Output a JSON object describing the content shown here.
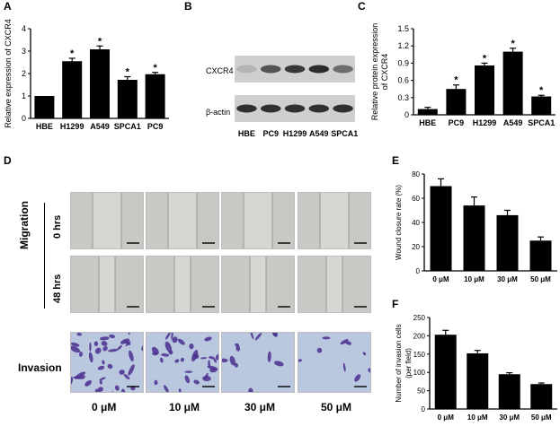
{
  "panels": {
    "A": {
      "letter": "A"
    },
    "B": {
      "letter": "B"
    },
    "C": {
      "letter": "C"
    },
    "D": {
      "letter": "D"
    },
    "E": {
      "letter": "E"
    },
    "F": {
      "letter": "F"
    }
  },
  "colors": {
    "bar": "#000000",
    "axis": "#000000",
    "blot_bg": "#cfcfcf",
    "blot_band": "#1e1e1e",
    "invasion_stain": "#4b2f8f",
    "invasion_bg": "#b9c7df",
    "migration_bg": "#c8c8c4"
  },
  "chart_data": [
    {
      "id": "A",
      "type": "bar",
      "categories": [
        "HBE",
        "H1299",
        "A549",
        "SPCA1",
        "PC9"
      ],
      "values": [
        1.0,
        2.55,
        3.08,
        1.72,
        1.97
      ],
      "errors": [
        0.0,
        0.13,
        0.15,
        0.14,
        0.08
      ],
      "significance": [
        "",
        "*",
        "*",
        "*",
        "*"
      ],
      "ylabel": "Relative expression of CXCR4",
      "ylim": [
        0,
        4
      ],
      "yticks": [
        "0",
        "1",
        "2",
        "3",
        "4"
      ]
    },
    {
      "id": "C",
      "type": "bar",
      "categories": [
        "HBE",
        "PC9",
        "H1299",
        "A549",
        "SPCA1"
      ],
      "values": [
        0.1,
        0.45,
        0.86,
        1.1,
        0.32
      ],
      "errors": [
        0.03,
        0.07,
        0.04,
        0.06,
        0.02
      ],
      "significance": [
        "",
        "*",
        "*",
        "*",
        "*"
      ],
      "ylabel_lines": [
        "Relative protein expression",
        "of CXCR4"
      ],
      "ylim": [
        0,
        1.5
      ],
      "yticks": [
        "0",
        "0.3",
        "0.6",
        "0.9",
        "1.2",
        "1.5"
      ]
    },
    {
      "id": "E",
      "type": "bar",
      "categories": [
        "0 μM",
        "10 μM",
        "30 μM",
        "50 μM"
      ],
      "values": [
        70,
        54,
        46,
        25
      ],
      "errors": [
        6,
        7,
        4,
        3
      ],
      "ylabel": "Wound closure rate (%)",
      "ylim": [
        0,
        80
      ],
      "yticks": [
        "0",
        "20",
        "40",
        "60",
        "80"
      ]
    },
    {
      "id": "F",
      "type": "bar",
      "categories": [
        "0 μM",
        "10 μM",
        "30 μM",
        "50 μM"
      ],
      "values": [
        203,
        152,
        95,
        68
      ],
      "errors": [
        12,
        8,
        4,
        3
      ],
      "ylabel_lines": [
        "Number of invasion cells",
        "(per field)"
      ],
      "ylim": [
        0,
        250
      ],
      "yticks": [
        "0",
        "50",
        "100",
        "150",
        "200",
        "250"
      ]
    }
  ],
  "blot": {
    "labels": [
      "HBE",
      "PC9",
      "H1299",
      "A549",
      "SPCA1"
    ],
    "rows": [
      {
        "name": "CXCR4",
        "intensity": [
          0.15,
          0.7,
          0.85,
          0.92,
          0.55
        ]
      },
      {
        "name": "β-actin",
        "intensity": [
          0.9,
          0.9,
          0.9,
          0.9,
          0.9
        ]
      }
    ]
  },
  "panelD": {
    "group_label": "Migration",
    "row_labels": [
      "0 hrs",
      "48 hrs"
    ],
    "invasion_label": "Invasion",
    "col_labels": [
      "0 μM",
      "10 μM",
      "30 μM",
      "50 μM"
    ],
    "invasion_density": [
      1.0,
      0.8,
      0.35,
      0.25
    ]
  }
}
